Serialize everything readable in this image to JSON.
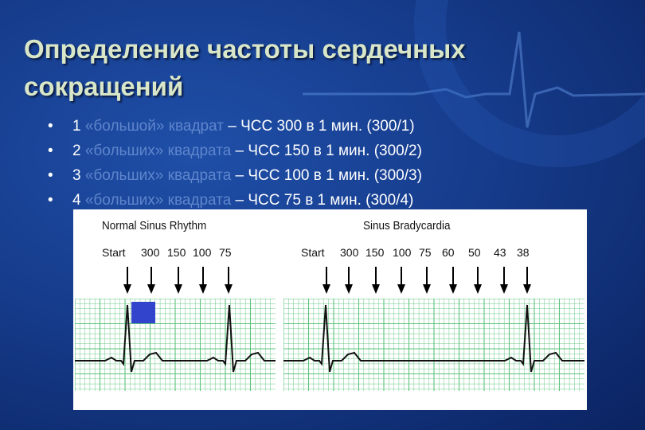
{
  "title_line1": "Определение частоты сердечных",
  "title_line2": "сокращений",
  "bullets": [
    {
      "num": "1",
      "highlight": "«большой» квадрат",
      "rest": " – ЧСС 300 в 1 мин. (300/1)"
    },
    {
      "num": "2",
      "highlight": "«больших» квадрата",
      "rest": " – ЧСС 150 в 1 мин. (300/2)"
    },
    {
      "num": "3",
      "highlight": "«больших» квадрата",
      "rest": " – ЧСС 100 в 1 мин. (300/3)"
    },
    {
      "num": "4",
      "highlight": "«больших» квадрата",
      "rest": " – ЧСС 75 в 1 мин. (300/4)"
    }
  ],
  "ecg": {
    "left_title": "Normal Sinus Rhythm",
    "right_title": "Sinus Bradycardia",
    "left_rates": [
      "Start",
      "300",
      "150",
      "100",
      "75"
    ],
    "right_rates": [
      "Start",
      "300",
      "150",
      "100",
      "75",
      "60",
      "50",
      "43",
      "38"
    ]
  },
  "colors": {
    "title": "#d9e7c8",
    "highlight": "#5f86cc",
    "grid": "#5cc37c",
    "trace": "#111111",
    "square": "#3344cc"
  }
}
